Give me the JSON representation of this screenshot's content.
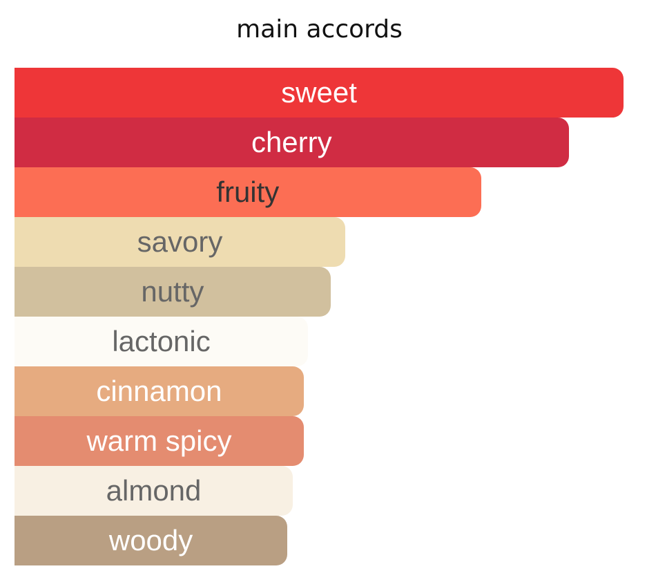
{
  "chart_data": {
    "type": "bar",
    "orientation": "horizontal",
    "title": "main accords",
    "categories": [
      "sweet",
      "cherry",
      "fruity",
      "savory",
      "nutty",
      "lactonic",
      "cinnamon",
      "warm spicy",
      "almond",
      "woody"
    ],
    "values": [
      100,
      91,
      76.6,
      54.3,
      51.9,
      48.2,
      47.5,
      47.5,
      45.7,
      44.8
    ],
    "xlim": [
      0,
      100
    ],
    "colors": [
      "#ee3638",
      "#d02c43",
      "#fc6e54",
      "#eedcb1",
      "#d1c09e",
      "#fdfbf6",
      "#e6ab80",
      "#e48c70",
      "#f8f0e3",
      "#b99f83"
    ],
    "label_colors": [
      "#ffffff",
      "#ffffff",
      "#333333",
      "#666666",
      "#666666",
      "#666666",
      "#ffffff",
      "#ffffff",
      "#666666",
      "#ffffff"
    ],
    "grid": false,
    "legend": "none"
  }
}
